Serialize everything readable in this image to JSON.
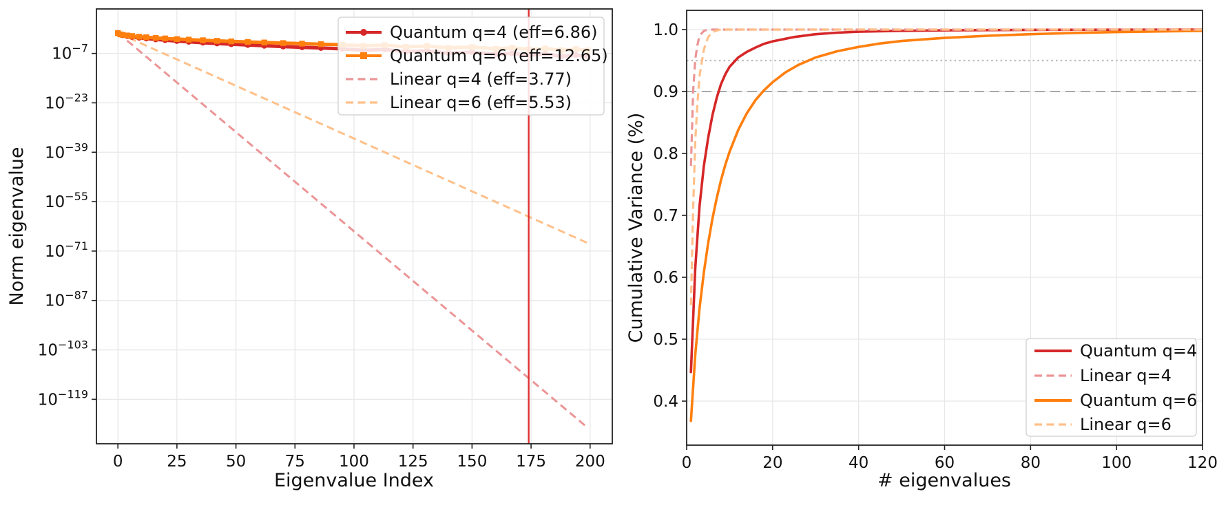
{
  "figure": {
    "background": "#ffffff",
    "description": "Two-panel figure: eigenvalue spectrum decay (log scale) and cumulative variance for quantum vs linear kernels"
  },
  "chart_data": [
    {
      "id": "eigenvalue-spectrum",
      "type": "line",
      "title": "",
      "xlabel": "Eigenvalue Index",
      "ylabel": "Norm eigenvalue",
      "x_ticks": [
        0,
        25,
        50,
        75,
        100,
        125,
        150,
        175,
        200
      ],
      "y_scale": "log10",
      "y_tick_exponents": [
        -7,
        -23,
        -39,
        -55,
        -71,
        -87,
        -103,
        -119
      ],
      "xlim": [
        -9.1,
        209.4
      ],
      "ylim": [
        -133.4,
        7.4
      ],
      "grid": true,
      "grid_color": "#e7e7e7",
      "vlines": [
        {
          "x": 174,
          "color": "#e03030",
          "width": 2.4,
          "style": "solid"
        }
      ],
      "hlines": [],
      "series": [
        {
          "name": "Linear q=4 (eff=3.77)",
          "color": "#eb9596",
          "style": "dashed",
          "width": 3,
          "marker": null,
          "points": [
            [
              0,
              -0.35
            ],
            [
              199,
              -128.2
            ]
          ]
        },
        {
          "name": "Linear q=6 (eff=5.53)",
          "color": "#ffc08a",
          "style": "dashed",
          "width": 3,
          "marker": null,
          "points": [
            [
              0,
              -0.4
            ],
            [
              199,
              -68.4
            ]
          ]
        },
        {
          "name": "Quantum q=4 (eff=6.86)",
          "color": "#d62728",
          "style": "solid",
          "width": 5,
          "marker": "circle",
          "points": [
            [
              0,
              -0.35
            ],
            [
              1,
              -0.88
            ],
            [
              2,
              -1.1
            ],
            [
              4,
              -1.41
            ],
            [
              6,
              -1.65
            ],
            [
              9,
              -1.94
            ],
            [
              12,
              -2.19
            ],
            [
              16,
              -2.47
            ],
            [
              20,
              -2.72
            ],
            [
              25,
              -3.0
            ],
            [
              30,
              -3.25
            ],
            [
              36,
              -3.53
            ],
            [
              42,
              -3.78
            ],
            [
              48,
              -4.02
            ],
            [
              55,
              -4.28
            ],
            [
              62,
              -4.52
            ],
            [
              70,
              -4.78
            ],
            [
              78,
              -5.03
            ],
            [
              86,
              -5.26
            ],
            [
              95,
              -5.52
            ],
            [
              104,
              -6.0
            ],
            [
              113,
              -5.72
            ],
            [
              122,
              -6.45
            ],
            [
              131,
              -6.15
            ],
            [
              140,
              -6.9
            ],
            [
              150,
              -6.6
            ],
            [
              160,
              -7.3
            ],
            [
              167,
              -6.95
            ],
            [
              174,
              -7.6
            ],
            [
              181,
              -7.2
            ],
            [
              188,
              -7.95
            ],
            [
              194,
              -7.5
            ],
            [
              199,
              -8.1
            ]
          ]
        },
        {
          "name": "Quantum q=6 (eff=12.65)",
          "color": "#ff7f0e",
          "style": "solid",
          "width": 5,
          "marker": "square",
          "points": [
            [
              0,
              -0.43
            ],
            [
              1,
              -0.82
            ],
            [
              2,
              -0.97
            ],
            [
              4,
              -1.2
            ],
            [
              6,
              -1.37
            ],
            [
              9,
              -1.59
            ],
            [
              12,
              -1.76
            ],
            [
              16,
              -1.97
            ],
            [
              20,
              -2.15
            ],
            [
              25,
              -2.36
            ],
            [
              30,
              -2.54
            ],
            [
              36,
              -2.74
            ],
            [
              42,
              -2.93
            ],
            [
              48,
              -3.1
            ],
            [
              55,
              -3.29
            ],
            [
              62,
              -3.46
            ],
            [
              70,
              -3.65
            ],
            [
              78,
              -3.83
            ],
            [
              86,
              -4.0
            ],
            [
              95,
              -4.18
            ],
            [
              104,
              -4.56
            ],
            [
              113,
              -4.32
            ],
            [
              122,
              -4.88
            ],
            [
              131,
              -4.64
            ],
            [
              140,
              -5.19
            ],
            [
              150,
              -4.95
            ],
            [
              160,
              -5.5
            ],
            [
              167,
              -5.21
            ],
            [
              174,
              -5.71
            ],
            [
              181,
              -5.4
            ],
            [
              188,
              -6.0
            ],
            [
              194,
              -5.6
            ],
            [
              199,
              -6.05
            ]
          ]
        }
      ],
      "legend": {
        "position": "upper right",
        "entries": [
          {
            "label": "Quantum q=4 (eff=6.86)",
            "color": "#d62728",
            "style": "solid",
            "marker": "circle"
          },
          {
            "label": "Quantum q=6 (eff=12.65)",
            "color": "#ff7f0e",
            "style": "solid",
            "marker": "square"
          },
          {
            "label": "Linear q=4 (eff=3.77)",
            "color": "#eb9596",
            "style": "dashed",
            "marker": null
          },
          {
            "label": "Linear q=6 (eff=5.53)",
            "color": "#ffc08a",
            "style": "dashed",
            "marker": null
          }
        ]
      }
    },
    {
      "id": "cumulative-variance",
      "type": "line",
      "title": "",
      "xlabel": "# eigenvalues",
      "ylabel": "Cumulative Variance (%)",
      "x_ticks": [
        0,
        20,
        40,
        60,
        80,
        100,
        120
      ],
      "y_scale": "linear",
      "y_ticks": [
        0.4,
        0.5,
        0.6,
        0.7,
        0.8,
        0.9,
        1.0
      ],
      "xlim": [
        0,
        120
      ],
      "ylim": [
        0.3289,
        1.0311
      ],
      "grid": true,
      "grid_color": "#e7e7e7",
      "vlines": [],
      "hlines": [
        {
          "y": 0.95,
          "style": "dotted",
          "color": "#bbbbbb",
          "width": 2.2
        },
        {
          "y": 0.9,
          "style": "dashed",
          "color": "#a9a9a9",
          "width": 2.0
        }
      ],
      "series": [
        {
          "name": "Quantum q=4",
          "color": "#d62728",
          "style": "solid",
          "width": 3.6,
          "marker": null,
          "points": [
            [
              1,
              0.447
            ],
            [
              2,
              0.615
            ],
            [
              3,
              0.715
            ],
            [
              4,
              0.78
            ],
            [
              5,
              0.825
            ],
            [
              6,
              0.862
            ],
            [
              7,
              0.89
            ],
            [
              8,
              0.912
            ],
            [
              9,
              0.928
            ],
            [
              10,
              0.94
            ],
            [
              12,
              0.955
            ],
            [
              14,
              0.964
            ],
            [
              16,
              0.971
            ],
            [
              18,
              0.977
            ],
            [
              20,
              0.981
            ],
            [
              25,
              0.988
            ],
            [
              30,
              0.9925
            ],
            [
              35,
              0.995
            ],
            [
              40,
              0.9965
            ],
            [
              50,
              0.998
            ],
            [
              60,
              0.9988
            ],
            [
              80,
              0.9995
            ],
            [
              100,
              0.9998
            ],
            [
              120,
              1.0
            ]
          ]
        },
        {
          "name": "Quantum q=6",
          "color": "#ff7f0e",
          "style": "solid",
          "width": 3.6,
          "marker": null,
          "points": [
            [
              1,
              0.368
            ],
            [
              2,
              0.475
            ],
            [
              3,
              0.55
            ],
            [
              4,
              0.608
            ],
            [
              5,
              0.655
            ],
            [
              6,
              0.695
            ],
            [
              7,
              0.728
            ],
            [
              8,
              0.757
            ],
            [
              9,
              0.782
            ],
            [
              10,
              0.803
            ],
            [
              12,
              0.838
            ],
            [
              14,
              0.865
            ],
            [
              16,
              0.886
            ],
            [
              18,
              0.902
            ],
            [
              20,
              0.915
            ],
            [
              23,
              0.931
            ],
            [
              26,
              0.943
            ],
            [
              30,
              0.955
            ],
            [
              35,
              0.965
            ],
            [
              40,
              0.972
            ],
            [
              45,
              0.9775
            ],
            [
              50,
              0.9815
            ],
            [
              60,
              0.9865
            ],
            [
              70,
              0.99
            ],
            [
              80,
              0.9925
            ],
            [
              90,
              0.9945
            ],
            [
              100,
              0.996
            ],
            [
              110,
              0.997
            ],
            [
              120,
              0.998
            ]
          ]
        },
        {
          "name": "Linear q=4",
          "color": "#eb9596",
          "style": "dashed",
          "width": 3.2,
          "marker": null,
          "points": [
            [
              1,
              0.78
            ],
            [
              1.5,
              0.9
            ],
            [
              2,
              0.952
            ],
            [
              2.5,
              0.975
            ],
            [
              3,
              0.99
            ],
            [
              4,
              0.998
            ],
            [
              5,
              1.0
            ],
            [
              120,
              1.0
            ]
          ]
        },
        {
          "name": "Linear q=6",
          "color": "#ffc08a",
          "style": "dashed",
          "width": 3.2,
          "marker": null,
          "points": [
            [
              1,
              0.555
            ],
            [
              1.5,
              0.71
            ],
            [
              2,
              0.82
            ],
            [
              2.5,
              0.88
            ],
            [
              3,
              0.925
            ],
            [
              4,
              0.968
            ],
            [
              5,
              0.988
            ],
            [
              6,
              0.996
            ],
            [
              7,
              0.9985
            ],
            [
              8,
              1.0
            ],
            [
              120,
              1.0
            ]
          ]
        }
      ],
      "legend": {
        "position": "lower right",
        "entries": [
          {
            "label": "Quantum q=4",
            "color": "#d62728",
            "style": "solid",
            "marker": null
          },
          {
            "label": "Linear q=4",
            "color": "#eb9596",
            "style": "dashed",
            "marker": null
          },
          {
            "label": "Quantum q=6",
            "color": "#ff7f0e",
            "style": "solid",
            "marker": null
          },
          {
            "label": "Linear q=6",
            "color": "#ffc08a",
            "style": "dashed",
            "marker": null
          }
        ]
      }
    }
  ]
}
